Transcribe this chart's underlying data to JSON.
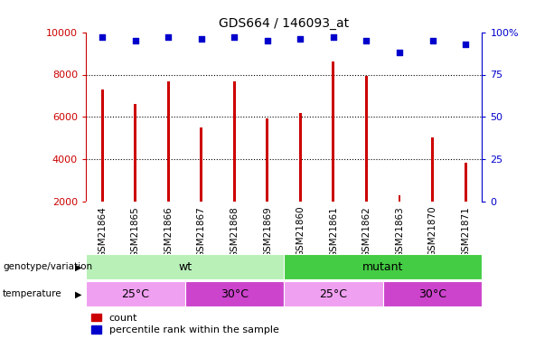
{
  "title": "GDS664 / 146093_at",
  "samples": [
    "GSM21864",
    "GSM21865",
    "GSM21866",
    "GSM21867",
    "GSM21868",
    "GSM21869",
    "GSM21860",
    "GSM21861",
    "GSM21862",
    "GSM21863",
    "GSM21870",
    "GSM21871"
  ],
  "counts": [
    7300,
    6600,
    7700,
    5500,
    7700,
    5950,
    6200,
    8600,
    7950,
    2300,
    5050,
    3850
  ],
  "percentile": [
    97,
    95,
    97,
    96,
    97,
    95,
    96,
    97,
    95,
    88,
    95,
    93
  ],
  "ylim_left": [
    2000,
    10000
  ],
  "ylim_right": [
    0,
    100
  ],
  "yticks_left": [
    2000,
    4000,
    6000,
    8000,
    10000
  ],
  "yticks_right": [
    0,
    25,
    50,
    75,
    100
  ],
  "bar_color": "#cc0000",
  "dot_color": "#0000cc",
  "axis_color_left": "#cc0000",
  "axis_color_right": "#0000cc",
  "xtick_bg_color": "#d3d3d3",
  "genotype_groups": [
    {
      "label": "wt",
      "start": 0,
      "end": 6,
      "color": "#b8f0b8"
    },
    {
      "label": "mutant",
      "start": 6,
      "end": 12,
      "color": "#44cc44"
    }
  ],
  "temperature_groups": [
    {
      "label": "25°C",
      "start": 0,
      "end": 3,
      "color": "#f0a0f0"
    },
    {
      "label": "30°C",
      "start": 3,
      "end": 6,
      "color": "#cc44cc"
    },
    {
      "label": "25°C",
      "start": 6,
      "end": 9,
      "color": "#f0a0f0"
    },
    {
      "label": "30°C",
      "start": 9,
      "end": 12,
      "color": "#cc44cc"
    }
  ],
  "legend_count_label": "count",
  "legend_pct_label": "percentile rank within the sample",
  "genotype_row_label": "genotype/variation",
  "temperature_row_label": "temperature"
}
